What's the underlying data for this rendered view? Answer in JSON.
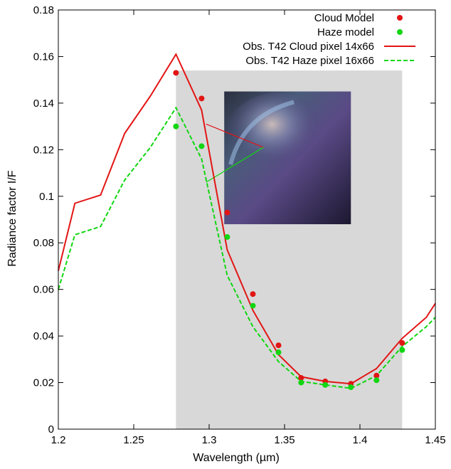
{
  "chart_data": {
    "type": "line",
    "xlabel": "Wavelength (µm)",
    "ylabel": "Radiance factor I/F",
    "xlim": [
      1.2,
      1.45
    ],
    "ylim": [
      0,
      0.18
    ],
    "xticks": [
      "1.2",
      "1.25",
      "1.3",
      "1.35",
      "1.4",
      "1.45"
    ],
    "yticks": [
      "0",
      "0.02",
      "0.04",
      "0.06",
      "0.08",
      "0.1",
      "0.12",
      "0.14",
      "0.16",
      "0.18"
    ],
    "shaded_band": {
      "x_from": 1.278,
      "x_to": 1.428,
      "y_to": 0.154,
      "color": "#d8d8d8"
    },
    "legend_position": "top-right",
    "series": [
      {
        "name": "Cloud Model",
        "kind": "points",
        "color": "#e21515",
        "x": [
          1.278,
          1.295,
          1.312,
          1.329,
          1.346,
          1.361,
          1.377,
          1.394,
          1.411,
          1.428
        ],
        "y": [
          0.153,
          0.142,
          0.093,
          0.058,
          0.036,
          0.022,
          0.0205,
          0.0195,
          0.023,
          0.037
        ]
      },
      {
        "name": "Haze model",
        "kind": "points",
        "color": "#11d611",
        "x": [
          1.278,
          1.295,
          1.312,
          1.329,
          1.346,
          1.361,
          1.377,
          1.394,
          1.411,
          1.428
        ],
        "y": [
          0.13,
          0.1215,
          0.0825,
          0.053,
          0.033,
          0.02,
          0.019,
          0.018,
          0.021,
          0.034
        ]
      },
      {
        "name": "Obs. T42 Cloud pixel 14x66",
        "kind": "line",
        "dash": "solid",
        "color": "#e21515",
        "x": [
          1.2,
          1.211,
          1.228,
          1.244,
          1.261,
          1.278,
          1.295,
          1.312,
          1.329,
          1.346,
          1.361,
          1.377,
          1.394,
          1.411,
          1.428,
          1.444,
          1.45
        ],
        "y": [
          0.068,
          0.097,
          0.1005,
          0.127,
          0.143,
          0.161,
          0.137,
          0.077,
          0.051,
          0.032,
          0.0225,
          0.0205,
          0.0195,
          0.026,
          0.039,
          0.048,
          0.054
        ]
      },
      {
        "name": "Obs. T42 Haze  pixel 16x66",
        "kind": "line",
        "dash": "dashed",
        "color": "#11d611",
        "x": [
          1.2,
          1.211,
          1.228,
          1.244,
          1.261,
          1.278,
          1.295,
          1.312,
          1.329,
          1.346,
          1.361,
          1.377,
          1.394,
          1.411,
          1.428,
          1.444,
          1.45
        ],
        "y": [
          0.06,
          0.0835,
          0.087,
          0.107,
          0.121,
          0.138,
          0.116,
          0.066,
          0.044,
          0.029,
          0.0205,
          0.019,
          0.0175,
          0.023,
          0.0355,
          0.044,
          0.048
        ]
      }
    ],
    "inset": {
      "kind": "image",
      "x_from": 1.31,
      "x_to": 1.394,
      "y_from": 0.088,
      "y_to": 0.145,
      "pointer_color_cloud": "#e21515",
      "pointer_color_haze": "#11d611",
      "cloud_pointer_from": [
        1.298,
        0.131
      ],
      "haze_pointer_from": [
        1.298,
        0.106
      ],
      "pointer_target": [
        1.336,
        0.121
      ]
    }
  }
}
